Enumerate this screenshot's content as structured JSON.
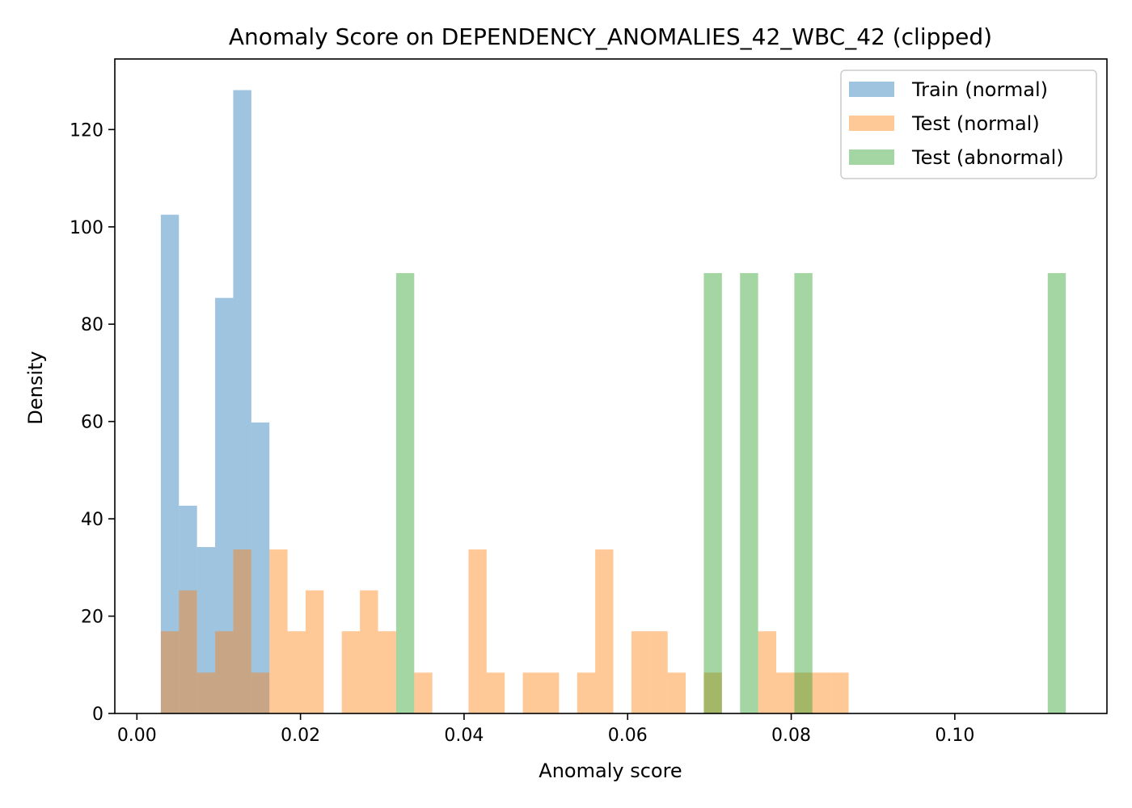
{
  "chart_data": {
    "type": "bar",
    "title": "Anomaly Score on DEPENDENCY_ANOMALIES_42_WBC_42 (clipped)",
    "xlabel": "Anomaly score",
    "ylabel": "Density",
    "xlim": [
      -0.0027,
      0.1186
    ],
    "ylim": [
      0,
      134.5
    ],
    "xticks": [
      0.0,
      0.02,
      0.04,
      0.06,
      0.08,
      0.1
    ],
    "xtick_labels": [
      "0.00",
      "0.02",
      "0.04",
      "0.06",
      "0.08",
      "0.10"
    ],
    "yticks": [
      0,
      20,
      40,
      60,
      80,
      100,
      120
    ],
    "ytick_labels": [
      "0",
      "20",
      "40",
      "60",
      "80",
      "100",
      "120"
    ],
    "bin_width": 0.002213,
    "grid": false,
    "legend_position": "top-right",
    "series": [
      {
        "name": "Train (normal)",
        "color": "#1f77b4",
        "opacity": 0.43,
        "bins": [
          [
            0.002925,
            102.5
          ],
          [
            0.005138,
            42.7
          ],
          [
            0.007351,
            34.2
          ],
          [
            0.009564,
            85.4
          ],
          [
            0.011777,
            128.1
          ],
          [
            0.01399,
            59.8
          ]
        ]
      },
      {
        "name": "Test (normal)",
        "color": "#ff7f0e",
        "opacity": 0.43,
        "bins": [
          [
            0.002925,
            16.9
          ],
          [
            0.005138,
            25.3
          ],
          [
            0.007351,
            8.4
          ],
          [
            0.009564,
            16.9
          ],
          [
            0.011777,
            33.7
          ],
          [
            0.01399,
            8.4
          ],
          [
            0.016203,
            33.7
          ],
          [
            0.018416,
            16.9
          ],
          [
            0.020629,
            25.3
          ],
          [
            0.025055,
            16.9
          ],
          [
            0.027268,
            25.3
          ],
          [
            0.029481,
            16.9
          ],
          [
            0.033907,
            8.4
          ],
          [
            0.040546,
            33.7
          ],
          [
            0.042759,
            8.4
          ],
          [
            0.047185,
            8.4
          ],
          [
            0.049398,
            8.4
          ],
          [
            0.053824,
            8.4
          ],
          [
            0.056037,
            33.7
          ],
          [
            0.060463,
            16.9
          ],
          [
            0.062676,
            16.9
          ],
          [
            0.064889,
            8.4
          ],
          [
            0.069315,
            8.4
          ],
          [
            0.075954,
            16.9
          ],
          [
            0.078167,
            8.4
          ],
          [
            0.08038,
            8.4
          ],
          [
            0.082593,
            8.4
          ],
          [
            0.084806,
            8.4
          ]
        ]
      },
      {
        "name": "Test (abnormal)",
        "color": "#2ca02c",
        "opacity": 0.43,
        "bins": [
          [
            0.031694,
            90.5
          ],
          [
            0.069315,
            90.5
          ],
          [
            0.073741,
            90.5
          ],
          [
            0.08038,
            90.5
          ],
          [
            0.111362,
            90.5
          ]
        ]
      }
    ]
  }
}
